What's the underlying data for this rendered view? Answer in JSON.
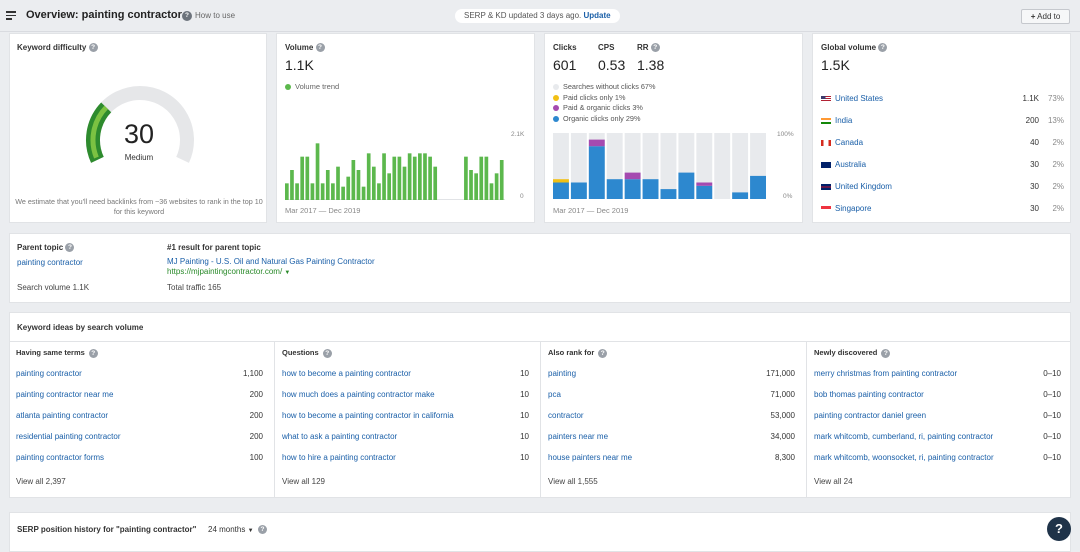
{
  "header": {
    "title": "Overview: painting contractor",
    "how_to": "How to use",
    "serp_status": "SERP & KD updated 3 days ago.",
    "serp_update": "Update",
    "add_to": "Add to"
  },
  "kd": {
    "title": "Keyword difficulty",
    "value": "30",
    "value_num": 30,
    "label": "Medium",
    "note": "We estimate that you'll need backlinks from ~36 websites to rank in the top 10 for this keyword",
    "colors": {
      "track": "#e6e7e9",
      "fill_dark": "#2e8b2e",
      "fill_light": "#7cc242"
    }
  },
  "volume": {
    "title": "Volume",
    "value": "1.1K",
    "legend": "Volume trend",
    "axis_top": "2.1K",
    "axis_bottom": "0",
    "date_range": "Mar 2017 — Dec 2019",
    "color": "#5cb84d",
    "chart_data": {
      "type": "bar",
      "ylim": [
        0,
        2100
      ],
      "values": [
        500,
        900,
        500,
        1300,
        1300,
        500,
        1700,
        500,
        900,
        500,
        1000,
        400,
        700,
        1200,
        900,
        400,
        1400,
        1000,
        500,
        1400,
        800,
        1300,
        1300,
        1000,
        1400,
        1300,
        1400,
        1400,
        1300,
        1000,
        0,
        0,
        0,
        0,
        0,
        1300,
        900,
        800,
        1300,
        1300,
        500,
        800,
        1200
      ]
    }
  },
  "clicks": {
    "labels": {
      "clicks": "Clicks",
      "cps": "CPS",
      "rr": "RR"
    },
    "values": {
      "clicks": "601",
      "cps": "0.53",
      "rr": "1.38"
    },
    "legend": [
      {
        "label": "Searches without clicks 67%",
        "color": "#e8eaed"
      },
      {
        "label": "Paid clicks only 1%",
        "color": "#f2c014"
      },
      {
        "label": "Paid & organic clicks 3%",
        "color": "#a54ab0"
      },
      {
        "label": "Organic clicks only 29%",
        "color": "#2d88cf"
      }
    ],
    "axis_top": "100%",
    "axis_bottom": "0%",
    "date_range": "Mar 2017 — Dec 2019",
    "chart_data": {
      "type": "bar",
      "stacked": true,
      "ylim": [
        0,
        100
      ],
      "bars": [
        {
          "organic": 25,
          "paid_organic": 0,
          "paid": 5
        },
        {
          "organic": 25,
          "paid_organic": 0,
          "paid": 0
        },
        {
          "organic": 80,
          "paid_organic": 10,
          "paid": 0
        },
        {
          "organic": 30,
          "paid_organic": 0,
          "paid": 0
        },
        {
          "organic": 30,
          "paid_organic": 10,
          "paid": 0
        },
        {
          "organic": 30,
          "paid_organic": 0,
          "paid": 0
        },
        {
          "organic": 15,
          "paid_organic": 0,
          "paid": 0
        },
        {
          "organic": 40,
          "paid_organic": 0,
          "paid": 0
        },
        {
          "organic": 20,
          "paid_organic": 5,
          "paid": 0
        },
        {
          "organic": 0,
          "paid_organic": 0,
          "paid": 0
        },
        {
          "organic": 10,
          "paid_organic": 0,
          "paid": 0
        },
        {
          "organic": 35,
          "paid_organic": 0,
          "paid": 0
        }
      ]
    }
  },
  "global": {
    "title": "Global volume",
    "value": "1.5K",
    "countries": [
      {
        "name": "United States",
        "volume": "1.1K",
        "share": "73%",
        "flag": "us-flag"
      },
      {
        "name": "India",
        "volume": "200",
        "share": "13%",
        "flag": "in-flag"
      },
      {
        "name": "Canada",
        "volume": "40",
        "share": "2%",
        "flag": "ca-flag"
      },
      {
        "name": "Australia",
        "volume": "30",
        "share": "2%",
        "flag": "au-flag"
      },
      {
        "name": "United Kingdom",
        "volume": "30",
        "share": "2%",
        "flag": "uk-flag"
      },
      {
        "name": "Singapore",
        "volume": "30",
        "share": "2%",
        "flag": "sg-flag"
      }
    ]
  },
  "parent": {
    "title": "Parent topic",
    "topic": "painting contractor",
    "search_volume": "Search volume 1.1K",
    "result_title": "#1 result for parent topic",
    "result_link": "MJ Painting - U.S. Oil and Natural Gas Painting Contractor",
    "result_url": "https://mjpaintingcontractor.com/",
    "total_traffic": "Total traffic 165"
  },
  "ideas": {
    "title": "Keyword ideas by search volume",
    "columns": [
      {
        "title": "Having same terms",
        "rows": [
          {
            "kw": "painting contractor",
            "val": "1,100"
          },
          {
            "kw": "painting contractor near me",
            "val": "200"
          },
          {
            "kw": "atlanta painting contractor",
            "val": "200"
          },
          {
            "kw": "residential painting contractor",
            "val": "200"
          },
          {
            "kw": "painting contractor forms",
            "val": "100"
          }
        ],
        "view_all": "View all 2,397"
      },
      {
        "title": "Questions",
        "rows": [
          {
            "kw": "how to become a painting contractor",
            "val": "10"
          },
          {
            "kw": "how much does a painting contractor make",
            "val": "10"
          },
          {
            "kw": "how to become a painting contractor in california",
            "val": "10"
          },
          {
            "kw": "what to ask a painting contractor",
            "val": "10"
          },
          {
            "kw": "how to hire a painting contractor",
            "val": "10"
          }
        ],
        "view_all": "View all 129"
      },
      {
        "title": "Also rank for",
        "rows": [
          {
            "kw": "painting",
            "val": "171,000"
          },
          {
            "kw": "pca",
            "val": "71,000"
          },
          {
            "kw": "contractor",
            "val": "53,000"
          },
          {
            "kw": "painters near me",
            "val": "34,000"
          },
          {
            "kw": "house painters near me",
            "val": "8,300"
          }
        ],
        "view_all": "View all 1,555"
      },
      {
        "title": "Newly discovered",
        "rows": [
          {
            "kw": "merry christmas from painting contractor",
            "val": "0–10"
          },
          {
            "kw": "bob thomas painting contractor",
            "val": "0–10"
          },
          {
            "kw": "painting contractor daniel green",
            "val": "0–10"
          },
          {
            "kw": "mark whitcomb, cumberland, ri, painting contractor",
            "val": "0–10"
          },
          {
            "kw": "mark whitcomb, woonsocket, ri, painting contractor",
            "val": "0–10"
          }
        ],
        "view_all": "View all 24"
      }
    ]
  },
  "serp_history": {
    "title": "SERP position history for \"painting contractor\"",
    "range": "24 months"
  },
  "fab": "?"
}
